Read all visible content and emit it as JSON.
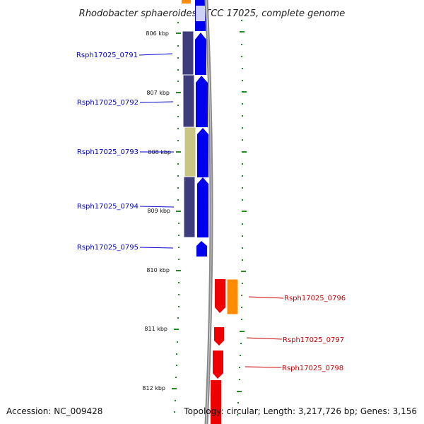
{
  "title": "Rhodobacter sphaeroides ATCC 17025, complete genome",
  "footer": {
    "accession": "Accession: NC_009428",
    "topology": "Topology: circular; Length: 3,217,726 bp; Genes: 3,156"
  },
  "colors": {
    "forward_cds": "#0000ee",
    "reverse_cds": "#ee0000",
    "backbone": "#888888",
    "tick": "#228b22",
    "forward_label": "#0000cc",
    "reverse_label": "#cc0000",
    "blast_slate": "#3f3c7e",
    "blast_khaki": "#c9c583",
    "blast_orange": "#ff8c00"
  },
  "scale": {
    "tick_labels": [
      "806 kbp",
      "807 kbp",
      "808 kbp",
      "809 kbp",
      "810 kbp",
      "811 kbp",
      "812 kbp"
    ]
  },
  "genes": [
    {
      "name": "Rsph17025_0791",
      "strand": "forward"
    },
    {
      "name": "Rsph17025_0792",
      "strand": "forward"
    },
    {
      "name": "Rsph17025_0793",
      "strand": "forward"
    },
    {
      "name": "Rsph17025_0794",
      "strand": "forward"
    },
    {
      "name": "Rsph17025_0795",
      "strand": "forward"
    },
    {
      "name": "Rsph17025_0796",
      "strand": "reverse"
    },
    {
      "name": "Rsph17025_0797",
      "strand": "reverse"
    },
    {
      "name": "Rsph17025_0798",
      "strand": "reverse"
    }
  ]
}
